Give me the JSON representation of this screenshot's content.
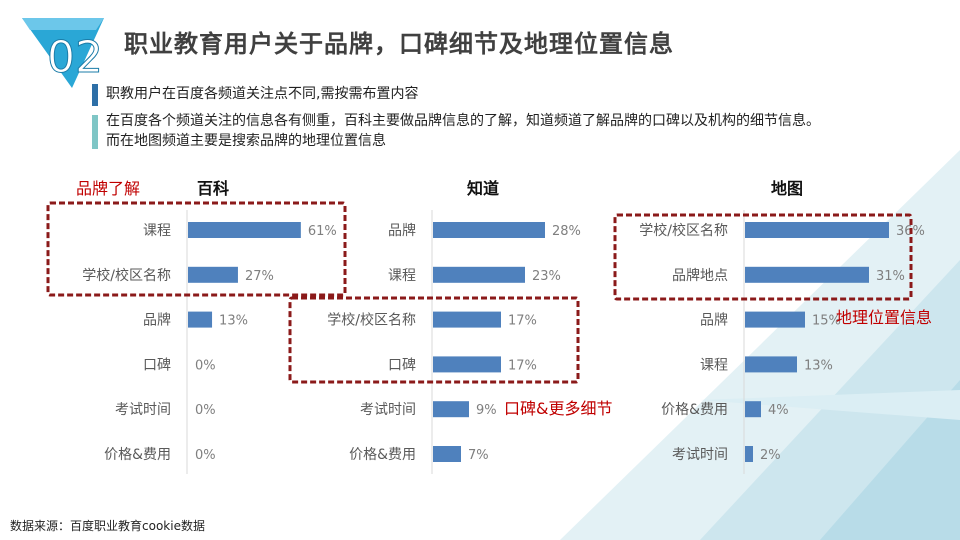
{
  "page": {
    "badge_number": "02",
    "title": "职业教育用户关于品牌，口碑细节及地理位置信息",
    "bullet1": "职教用户在百度各频道关注点不同,需按需布置内容",
    "bullet2_line1": "在百度各个频道关注的信息各有侧重，百科主要做品牌信息的了解，知道频道了解品牌的口碑以及机构的细节信息。",
    "bullet2_line2": "而在地图频道主要是搜索品牌的地理位置信息",
    "footer": "数据来源：百度职业教育cookie数据",
    "colors": {
      "bar": "#4f81bd",
      "highlight": "#8b1a1a",
      "accent_text": "#c00000",
      "badge": "#2aa7d6"
    }
  },
  "callouts": [
    "品牌了解",
    "口碑&更多细节",
    "地理位置信息"
  ],
  "chart_data": [
    {
      "type": "bar",
      "title": "百科",
      "categories": [
        "课程",
        "学校/校区名称",
        "品牌",
        "口碑",
        "考试时间",
        "价格&费用"
      ],
      "values": [
        61,
        27,
        13,
        0,
        0,
        0
      ],
      "labels": [
        "61%",
        "27%",
        "13%",
        "0%",
        "0%",
        "0%"
      ],
      "xlim": [
        0,
        70
      ]
    },
    {
      "type": "bar",
      "title": "知道",
      "categories": [
        "品牌",
        "课程",
        "学校/校区名称",
        "口碑",
        "考试时间",
        "价格&费用"
      ],
      "values": [
        28,
        23,
        17,
        17,
        9,
        7
      ],
      "labels": [
        "28%",
        "23%",
        "17%",
        "17%",
        "9%",
        "7%"
      ],
      "xlim": [
        0,
        30
      ]
    },
    {
      "type": "bar",
      "title": "地图",
      "categories": [
        "学校/校区名称",
        "品牌地点",
        "品牌",
        "课程",
        "价格&费用",
        "考试时间"
      ],
      "values": [
        36,
        31,
        15,
        13,
        4,
        2
      ],
      "labels": [
        "36%",
        "31%",
        "15%",
        "13%",
        "4%",
        "2%"
      ],
      "xlim": [
        0,
        38
      ]
    }
  ]
}
